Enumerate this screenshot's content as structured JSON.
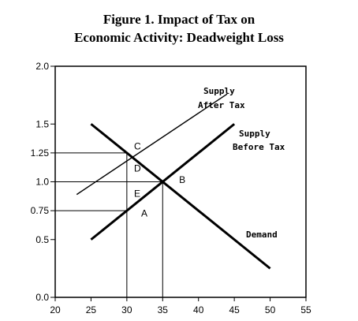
{
  "chart_data": {
    "type": "line",
    "title_lines": [
      "Figure 1.  Impact of Tax on",
      "Economic Activity: Deadweight Loss"
    ],
    "xlabel": "",
    "ylabel": "",
    "xlim": [
      20,
      55
    ],
    "ylim": [
      0.0,
      2.0
    ],
    "x_ticks": [
      20,
      25,
      30,
      35,
      40,
      45,
      50,
      55
    ],
    "y_ticks": [
      {
        "value": 0.0,
        "label": "0.0"
      },
      {
        "value": 0.5,
        "label": "0.5"
      },
      {
        "value": 0.75,
        "label": "0.75"
      },
      {
        "value": 1.0,
        "label": "1.0"
      },
      {
        "value": 1.25,
        "label": "1.25"
      },
      {
        "value": 1.5,
        "label": "1.5"
      },
      {
        "value": 2.0,
        "label": "2.0"
      }
    ],
    "grid": false,
    "series": [
      {
        "name": "Demand",
        "label_lines": [
          "Demand"
        ],
        "x": [
          25,
          50
        ],
        "y": [
          1.5,
          0.25
        ],
        "stroke": 3
      },
      {
        "name": "Supply Before Tax",
        "label_lines": [
          "Supply",
          "Before Tax"
        ],
        "x": [
          25,
          45
        ],
        "y": [
          0.5,
          1.5
        ],
        "stroke": 3
      },
      {
        "name": "Supply After Tax",
        "label_lines": [
          "Supply",
          "After Tax"
        ],
        "x": [
          23,
          44
        ],
        "y": [
          0.89,
          1.76
        ],
        "stroke": 1.4
      }
    ],
    "guides": [
      {
        "from": [
          20,
          1.25
        ],
        "to": [
          30,
          1.25
        ]
      },
      {
        "from": [
          20,
          1.0
        ],
        "to": [
          35,
          1.0
        ]
      },
      {
        "from": [
          20,
          0.75
        ],
        "to": [
          30,
          0.75
        ]
      },
      {
        "from": [
          30,
          0
        ],
        "to": [
          30,
          1.25
        ]
      },
      {
        "from": [
          35,
          0
        ],
        "to": [
          35,
          1.0
        ]
      }
    ],
    "points": [
      {
        "label": "C",
        "x": 31,
        "y": 1.28
      },
      {
        "label": "B",
        "x": 37.3,
        "y": 0.99
      },
      {
        "label": "D",
        "x": 31,
        "y": 1.09
      },
      {
        "label": "E",
        "x": 31,
        "y": 0.87
      },
      {
        "label": "A",
        "x": 32,
        "y": 0.7
      }
    ]
  }
}
